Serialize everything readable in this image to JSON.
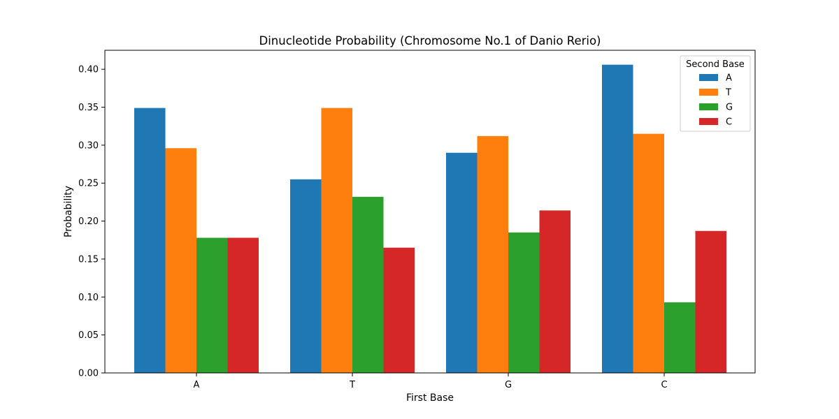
{
  "chart_data": {
    "type": "bar",
    "title": "Dinucleotide Probability (Chromosome No.1 of Danio Rerio)",
    "xlabel": "First Base",
    "ylabel": "Probability",
    "categories": [
      "A",
      "T",
      "G",
      "C"
    ],
    "ylim": [
      0,
      0.425
    ],
    "yticks": [
      0.0,
      0.05,
      0.1,
      0.15,
      0.2,
      0.25,
      0.3,
      0.35,
      0.4
    ],
    "ytick_labels": [
      "0.00",
      "0.05",
      "0.10",
      "0.15",
      "0.20",
      "0.25",
      "0.30",
      "0.35",
      "0.40"
    ],
    "grid": false,
    "legend": {
      "title": "Second Base",
      "placement": "top-right"
    },
    "series": [
      {
        "name": "A",
        "color": "#1f77b4",
        "values": [
          0.349,
          0.255,
          0.29,
          0.406
        ]
      },
      {
        "name": "T",
        "color": "#ff7f0e",
        "values": [
          0.296,
          0.349,
          0.312,
          0.315
        ]
      },
      {
        "name": "G",
        "color": "#2ca02c",
        "values": [
          0.178,
          0.232,
          0.185,
          0.093
        ]
      },
      {
        "name": "C",
        "color": "#d62728",
        "values": [
          0.178,
          0.165,
          0.214,
          0.187
        ]
      }
    ]
  }
}
